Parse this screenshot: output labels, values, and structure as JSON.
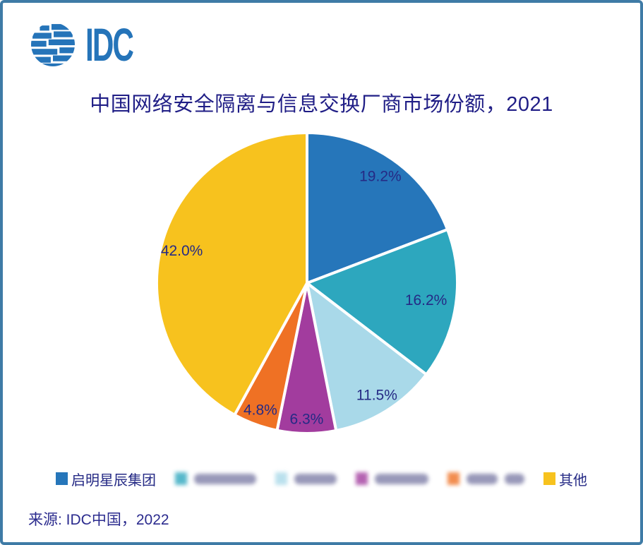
{
  "logo": {
    "text": "IDC",
    "color": "#2574b9"
  },
  "chart_data": {
    "type": "pie",
    "title": "中国网络安全隔离与信息交换厂商市场份额，2021",
    "unit": "percent",
    "direction": "clockwise",
    "start_angle": "12-oclock",
    "grid": false,
    "legend_position": "bottom",
    "label_color": "#252a85",
    "slices": [
      {
        "name": "启明星辰集团",
        "value": 19.2,
        "label": "19.2%",
        "color": "#2676ba",
        "legend_redacted": false
      },
      {
        "name": "",
        "value": 16.2,
        "label": "16.2%",
        "color": "#2da7be",
        "legend_redacted": true,
        "legend_blob_widths": [
          88
        ]
      },
      {
        "name": "",
        "value": 11.5,
        "label": "11.5%",
        "color": "#a9d9e9",
        "legend_redacted": true,
        "legend_blob_widths": [
          60
        ]
      },
      {
        "name": "",
        "value": 6.3,
        "label": "6.3%",
        "color": "#a23c9e",
        "legend_redacted": true,
        "legend_blob_widths": [
          76
        ]
      },
      {
        "name": "",
        "value": 4.8,
        "label": "4.8%",
        "color": "#ef7124",
        "legend_redacted": true,
        "legend_blob_widths": [
          44,
          28
        ]
      },
      {
        "name": "其他",
        "value": 42.0,
        "label": "42.0%",
        "color": "#f7c21e",
        "legend_redacted": false
      }
    ]
  },
  "footer": {
    "source": "来源: IDC中国，2022"
  }
}
